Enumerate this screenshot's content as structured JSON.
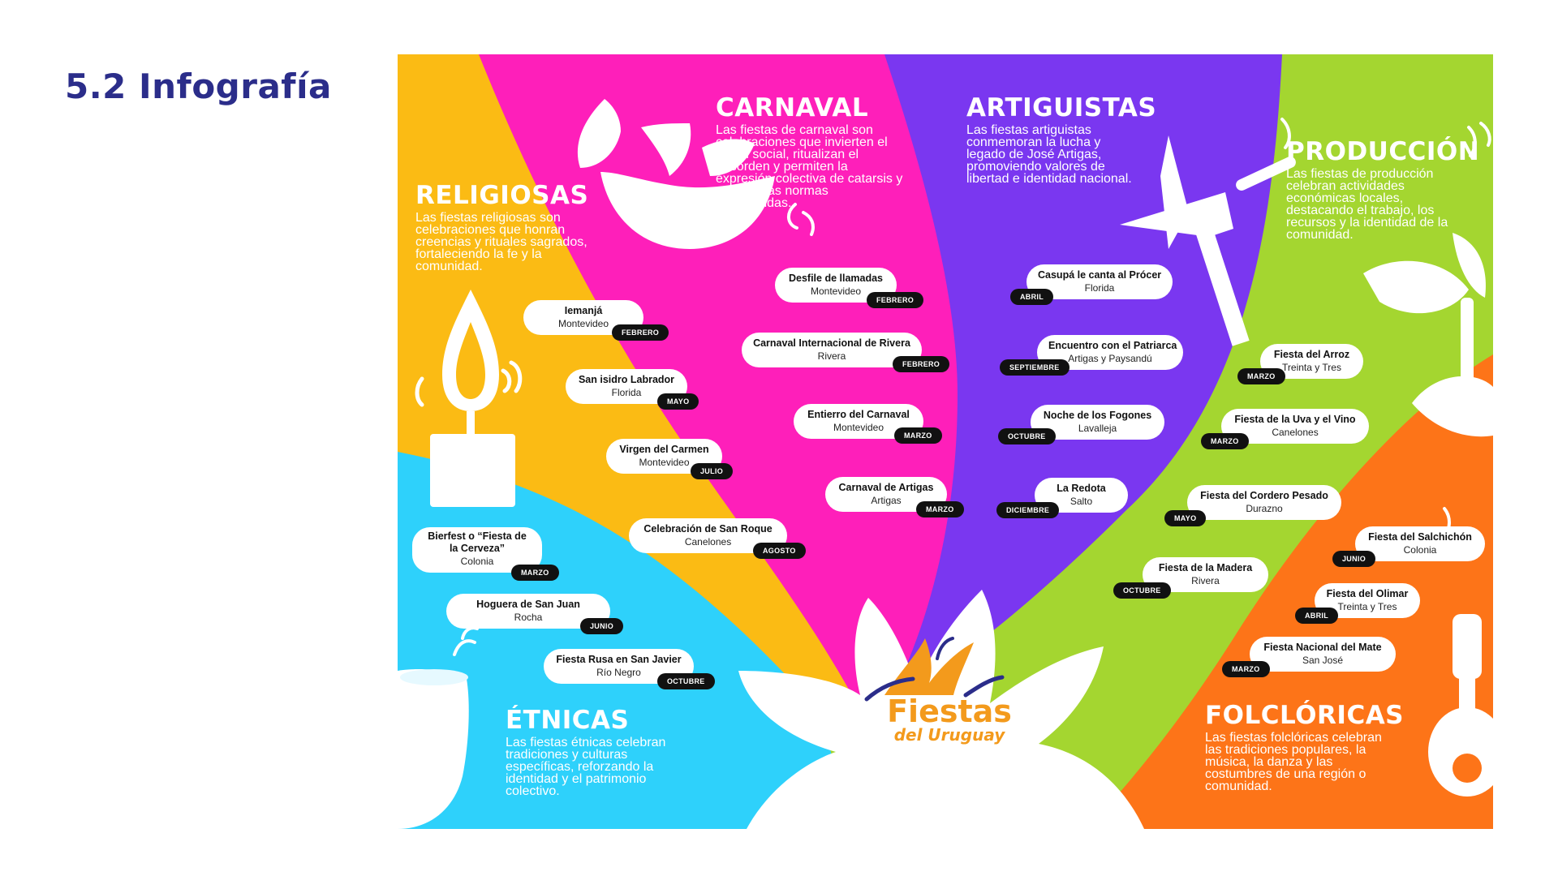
{
  "page": {
    "title": "5.2 Infografía"
  },
  "colors": {
    "religiosas": "#fbbb14",
    "carnaval": "#fe1fba",
    "artiguistas": "#7a37f0",
    "produccion": "#a4d630",
    "folcloricas": "#fd7418",
    "etnicas": "#2ed1fb",
    "title": "#2b2d8a",
    "logo": "#f39a1c",
    "logo_accent": "#2b2d8a"
  },
  "logo": {
    "line1": "Fiestas",
    "line2": "del Uruguay"
  },
  "categories": {
    "religiosas": {
      "title": "RELIGIOSAS",
      "desc": "Las fiestas religiosas son celebraciones que honran creencias y rituales sagrados, fortaleciendo la fe y la comunidad.",
      "icon": "candle-icon"
    },
    "carnaval": {
      "title": "CARNAVAL",
      "desc": "Las fiestas de carnaval son celebraciones que invierten el orden social, ritualizan el desorden y permiten la expresión colectiva de catarsis y crítica a las normas establecidas.",
      "icon": "mask-icon"
    },
    "artiguistas": {
      "title": "ARTIGUISTAS",
      "desc": "Las fiestas artiguistas conmemoran la lucha y legado de José Artigas, promoviendo valores de libertad e identidad nacional.",
      "icon": "spear-icon"
    },
    "produccion": {
      "title": "PRODUCCIÓN",
      "desc": "Las fiestas de producción celebran actividades económicas locales, destacando el trabajo, los recursos y la identidad de la comunidad.",
      "icon": "sprout-icon"
    },
    "folcloricas": {
      "title": "FOLCLÓRICAS",
      "desc": "Las fiestas folclóricas celebran las tradiciones populares, la música, la danza y las costumbres de una región o comunidad.",
      "icon": "guitar-icon"
    },
    "etnicas": {
      "title": "ÉTNICAS",
      "desc": "Las fiestas étnicas celebran tradiciones y culturas específicas, reforzando la identidad y el patrimonio colectivo.",
      "icon": "jar-icon"
    }
  },
  "events": {
    "religiosas": [
      {
        "name": "Iemanjá",
        "place": "Montevideo",
        "month": "FEBRERO"
      },
      {
        "name": "San isidro Labrador",
        "place": "Florida",
        "month": "MAYO"
      },
      {
        "name": "Virgen del Carmen",
        "place": "Montevideo",
        "month": "JULIO"
      },
      {
        "name": "Celebración de San Roque",
        "place": "Canelones",
        "month": "AGOSTO"
      }
    ],
    "carnaval": [
      {
        "name": "Desfile de llamadas",
        "place": "Montevideo",
        "month": "FEBRERO"
      },
      {
        "name": "Carnaval Internacional de Rivera",
        "place": "Rivera",
        "month": "FEBRERO"
      },
      {
        "name": "Entierro del Carnaval",
        "place": "Montevideo",
        "month": "MARZO"
      },
      {
        "name": "Carnaval de Artigas",
        "place": "Artigas",
        "month": "MARZO"
      }
    ],
    "artiguistas": [
      {
        "name": "Casupá le canta al Prócer",
        "place": "Florida",
        "month": "ABRIL"
      },
      {
        "name": "Encuentro con el Patriarca",
        "place": "Artigas y Paysandú",
        "month": "SEPTIEMBRE"
      },
      {
        "name": "Noche de los Fogones",
        "place": "Lavalleja",
        "month": "OCTUBRE"
      },
      {
        "name": "La Redota",
        "place": "Salto",
        "month": "DICIEMBRE"
      }
    ],
    "produccion": [
      {
        "name": "Fiesta del Arroz",
        "place": "Treinta y Tres",
        "month": "MARZO"
      },
      {
        "name": "Fiesta de la Uva y el Vino",
        "place": "Canelones",
        "month": "MARZO"
      },
      {
        "name": "Fiesta del Cordero Pesado",
        "place": "Durazno",
        "month": "MAYO"
      },
      {
        "name": "Fiesta de la Madera",
        "place": "Rivera",
        "month": "OCTUBRE"
      }
    ],
    "folcloricas": [
      {
        "name": "Fiesta del Salchichón",
        "place": "Colonia",
        "month": "JUNIO"
      },
      {
        "name": "Fiesta del Olimar",
        "place": "Treinta y Tres",
        "month": "ABRIL"
      },
      {
        "name": "Fiesta Nacional del Mate",
        "place": "San José",
        "month": "MARZO"
      }
    ],
    "etnicas": [
      {
        "name": "Bierfest o “Fiesta de la Cerveza”",
        "place": "Colonia",
        "month": "MARZO"
      },
      {
        "name": "Hoguera de San Juan",
        "place": "Rocha",
        "month": "JUNIO"
      },
      {
        "name": "Fiesta Rusa en San Javier",
        "place": "Río Negro",
        "month": "OCTUBRE"
      }
    ]
  }
}
